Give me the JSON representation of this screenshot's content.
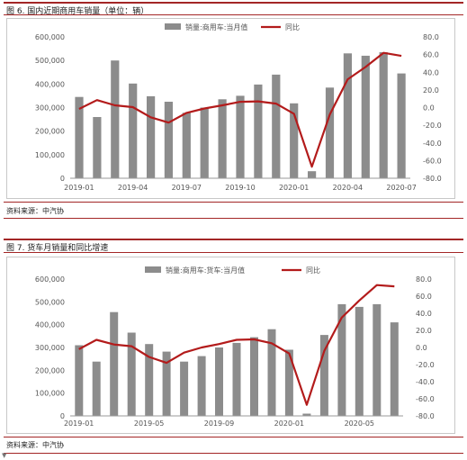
{
  "figures": [
    {
      "title": "图 6. 国内近期商用车销量（单位：辆）",
      "source": "资料来源：中汽协",
      "chart_data": {
        "type": "bar",
        "series": [
          {
            "name": "销量:商用车:当月值",
            "kind": "bar",
            "axis": "left",
            "values": [
              345000,
              260000,
              500000,
              402000,
              348000,
              325000,
              278000,
              300000,
              335000,
              350000,
              398000,
              440000,
              318000,
              30000,
              385000,
              530000,
              520000,
              535000,
              445000
            ]
          },
          {
            "name": "同比",
            "kind": "line",
            "axis": "right",
            "values": [
              -1.5,
              8.5,
              2.5,
              0.5,
              -11,
              -17,
              -6,
              -1,
              2.5,
              6.5,
              7,
              4.5,
              -7,
              -67,
              -8,
              32,
              46,
              62,
              58.5
            ]
          }
        ],
        "x_tick_labels": [
          "2019-01",
          "2019-04",
          "2019-07",
          "2019-10",
          "2020-01",
          "2020-04",
          "2020-07"
        ],
        "x_tick_indices": [
          0,
          3,
          6,
          9,
          12,
          15,
          18
        ],
        "left_axis": {
          "ticks": [
            "0",
            "100,000",
            "200,000",
            "300,000",
            "400,000",
            "500,000",
            "600,000"
          ],
          "ylim": [
            0,
            600000
          ]
        },
        "right_axis": {
          "ticks": [
            "-80.0",
            "-60.0",
            "-40.0",
            "-20.0",
            "0.0",
            "20.0",
            "40.0",
            "60.0",
            "80.0"
          ],
          "ylim": [
            -80,
            80
          ]
        },
        "grid": false,
        "legend_position": "top"
      }
    },
    {
      "title": "图 7. 货车月销量和同比增速",
      "source": "资料来源：中汽协",
      "chart_data": {
        "type": "bar",
        "series": [
          {
            "name": "销量:商用车:货车:当月值",
            "kind": "bar",
            "axis": "left",
            "values": [
              310000,
              238000,
              455000,
              365000,
              315000,
              282000,
              238000,
              262000,
              300000,
              320000,
              345000,
              380000,
              290000,
              10000,
              355000,
              490000,
              478000,
              490000,
              410000
            ]
          },
          {
            "name": "同比",
            "kind": "line",
            "axis": "right",
            "values": [
              -2,
              9,
              3.5,
              1.5,
              -11,
              -18,
              -6,
              0,
              4,
              9,
              9.5,
              5,
              -7,
              -67,
              -4,
              35,
              55,
              73,
              71.5
            ]
          }
        ],
        "x_tick_labels": [
          "2019-01",
          "2019-05",
          "2019-09",
          "2020-01",
          "2020-05"
        ],
        "x_tick_indices": [
          0,
          4,
          8,
          12,
          16
        ],
        "left_axis": {
          "ticks": [
            "0",
            "100,000",
            "200,000",
            "300,000",
            "400,000",
            "500,000",
            "600,000"
          ],
          "ylim": [
            0,
            600000
          ]
        },
        "right_axis": {
          "ticks": [
            "-80.0",
            "-60.0",
            "-40.0",
            "-20.0",
            "0.0",
            "20.0",
            "40.0",
            "60.0",
            "80.0"
          ],
          "ylim": [
            -80,
            80
          ]
        },
        "grid": false,
        "legend_position": "top"
      }
    }
  ],
  "colors": {
    "bar": "#8c8c8c",
    "line": "#b31b1b",
    "frame": "#a32626"
  },
  "icons": {
    "bottom_left": "caret-down-icon"
  }
}
